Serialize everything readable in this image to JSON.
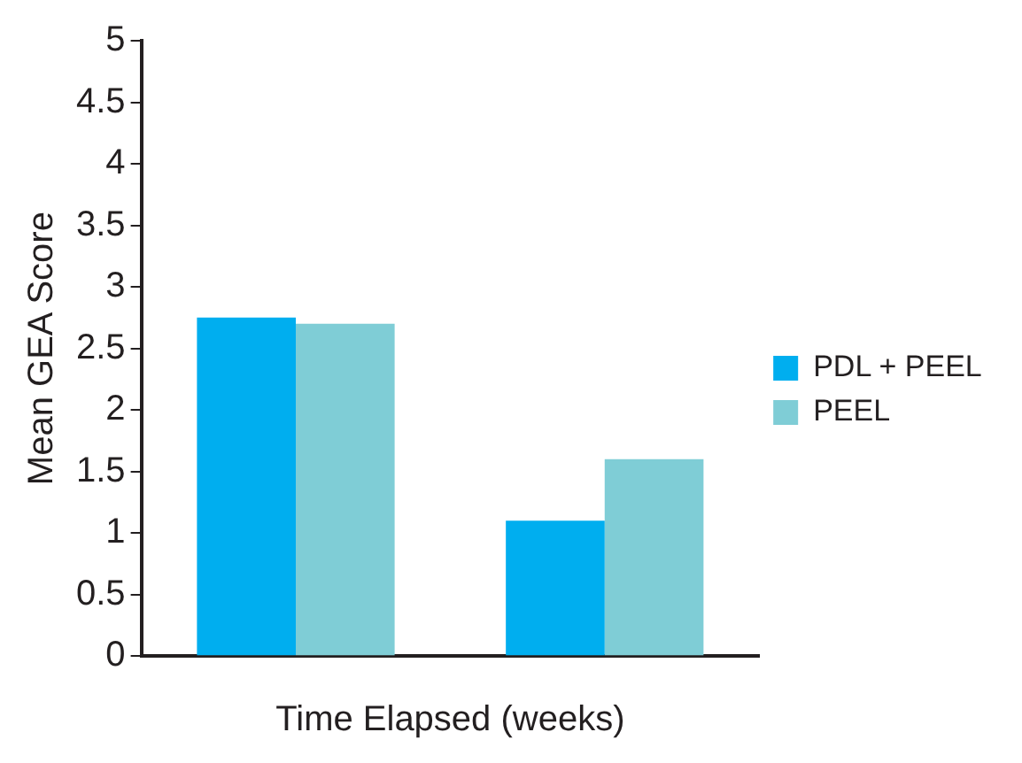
{
  "chart_data": {
    "type": "bar",
    "xlabel": "Time Elapsed (weeks)",
    "ylabel": "Mean GEA Score",
    "categories": [
      null,
      null
    ],
    "series": [
      {
        "name": "PDL + PEEL",
        "color": "#00aeef",
        "values": [
          2.75,
          1.1
        ]
      },
      {
        "name": "PEEL",
        "color": "#7fcdd6",
        "values": [
          2.7,
          1.6
        ]
      }
    ],
    "ylim": [
      0,
      5
    ],
    "yticks": [
      0,
      0.5,
      1,
      1.5,
      2,
      2.5,
      3,
      3.5,
      4,
      4.5,
      5
    ],
    "grid": false,
    "legend": "right"
  }
}
